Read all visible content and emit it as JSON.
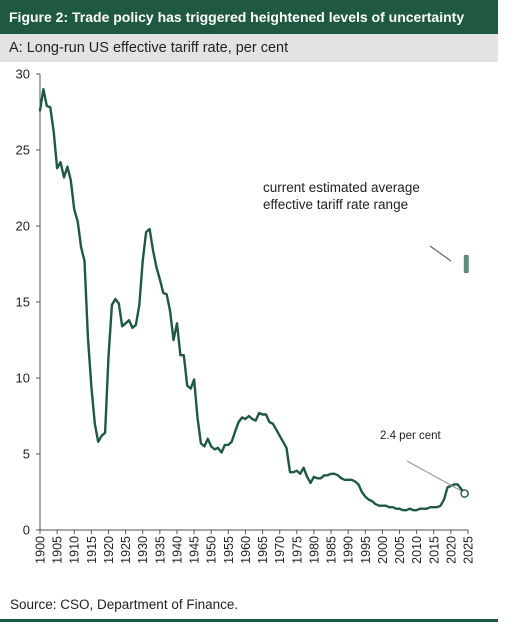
{
  "figure_title": "Figure 2: Trade policy has triggered heightened levels of uncertainty",
  "panel_title": "A: Long-run US effective tariff rate, per cent",
  "source": "Source: CSO, Department of Finance.",
  "colors": {
    "accent": "#1f5a40",
    "line": "#1f5a40",
    "range_marker": "#5f8f79",
    "annotation_line": "#9a9a9a",
    "header_band": "#e3e3e3"
  },
  "chart_data": {
    "type": "line",
    "title": "A: Long-run US effective tariff rate, per cent",
    "xlabel": "",
    "ylabel": "",
    "xlim": [
      1900,
      2025
    ],
    "ylim": [
      0,
      30
    ],
    "y_ticks": [
      "0",
      "5",
      "10",
      "15",
      "20",
      "25",
      "30"
    ],
    "x_ticks": [
      "1900",
      "1905",
      "1910",
      "1915",
      "1920",
      "1925",
      "1930",
      "1935",
      "1940",
      "1945",
      "1950",
      "1955",
      "1960",
      "1965",
      "1970",
      "1975",
      "1980",
      "1985",
      "1990",
      "1995",
      "2000",
      "2005",
      "2010",
      "2015",
      "2020",
      "2025"
    ],
    "grid": false,
    "series": [
      {
        "x": [
          1900,
          1901,
          1902,
          1903,
          1904,
          1905,
          1906,
          1907,
          1908,
          1909,
          1910,
          1911,
          1912,
          1913,
          1914,
          1915,
          1916,
          1917,
          1918,
          1919,
          1920,
          1921,
          1922,
          1923,
          1924,
          1925,
          1926,
          1927,
          1928,
          1929,
          1930,
          1931,
          1932,
          1933,
          1934,
          1935,
          1936,
          1937,
          1938,
          1939,
          1940,
          1941,
          1942,
          1943,
          1944,
          1945,
          1946,
          1947,
          1948,
          1949,
          1950,
          1951,
          1952,
          1953,
          1954,
          1955,
          1956,
          1957,
          1958,
          1959,
          1960,
          1961,
          1962,
          1963,
          1964,
          1965,
          1966,
          1967,
          1968,
          1969,
          1970,
          1971,
          1972,
          1973,
          1974,
          1975,
          1976,
          1977,
          1978,
          1979,
          1980,
          1981,
          1982,
          1983,
          1984,
          1985,
          1986,
          1987,
          1988,
          1989,
          1990,
          1991,
          1992,
          1993,
          1994,
          1995,
          1996,
          1997,
          1998,
          1999,
          2000,
          2001,
          2002,
          2003,
          2004,
          2005,
          2006,
          2007,
          2008,
          2009,
          2010,
          2011,
          2012,
          2013,
          2014,
          2015,
          2016,
          2017,
          2018,
          2019,
          2020,
          2021,
          2022,
          2023,
          2024
        ],
        "y": [
          27.6,
          29.0,
          27.9,
          27.8,
          26.2,
          23.8,
          24.2,
          23.2,
          23.9,
          23.0,
          21.1,
          20.3,
          18.6,
          17.7,
          12.7,
          9.4,
          7.0,
          5.8,
          6.2,
          6.4,
          11.4,
          14.8,
          15.2,
          14.9,
          13.4,
          13.6,
          13.8,
          13.3,
          13.5,
          14.8,
          17.7,
          19.6,
          19.8,
          18.4,
          17.3,
          16.5,
          15.6,
          15.5,
          14.4,
          12.5,
          13.6,
          11.5,
          11.5,
          9.5,
          9.3,
          9.9,
          7.4,
          5.7,
          5.5,
          6.0,
          5.5,
          5.3,
          5.4,
          5.1,
          5.6,
          5.6,
          5.8,
          6.5,
          7.1,
          7.4,
          7.3,
          7.5,
          7.3,
          7.2,
          7.7,
          7.6,
          7.6,
          7.1,
          7.0,
          6.6,
          6.2,
          5.8,
          5.4,
          3.8,
          3.8,
          3.9,
          3.7,
          4.1,
          3.5,
          3.1,
          3.5,
          3.4,
          3.4,
          3.6,
          3.6,
          3.7,
          3.7,
          3.6,
          3.4,
          3.3,
          3.3,
          3.3,
          3.2,
          3.0,
          2.5,
          2.2,
          2.0,
          1.9,
          1.7,
          1.6,
          1.6,
          1.6,
          1.5,
          1.5,
          1.4,
          1.4,
          1.3,
          1.3,
          1.4,
          1.3,
          1.3,
          1.4,
          1.4,
          1.4,
          1.5,
          1.5,
          1.5,
          1.6,
          2.0,
          2.8,
          2.9,
          3.0,
          3.0,
          2.7,
          2.4
        ]
      }
    ],
    "range_marker": {
      "x": 2024.5,
      "y_low": 16.9,
      "y_high": 18.1
    },
    "highlight_point": {
      "x": 2024,
      "y": 2.4
    },
    "annotations": [
      {
        "id": "range",
        "lines": [
          "current estimated average",
          "effective tariff rate range"
        ]
      },
      {
        "id": "latest",
        "lines": [
          "2.4 per cent"
        ]
      }
    ]
  }
}
